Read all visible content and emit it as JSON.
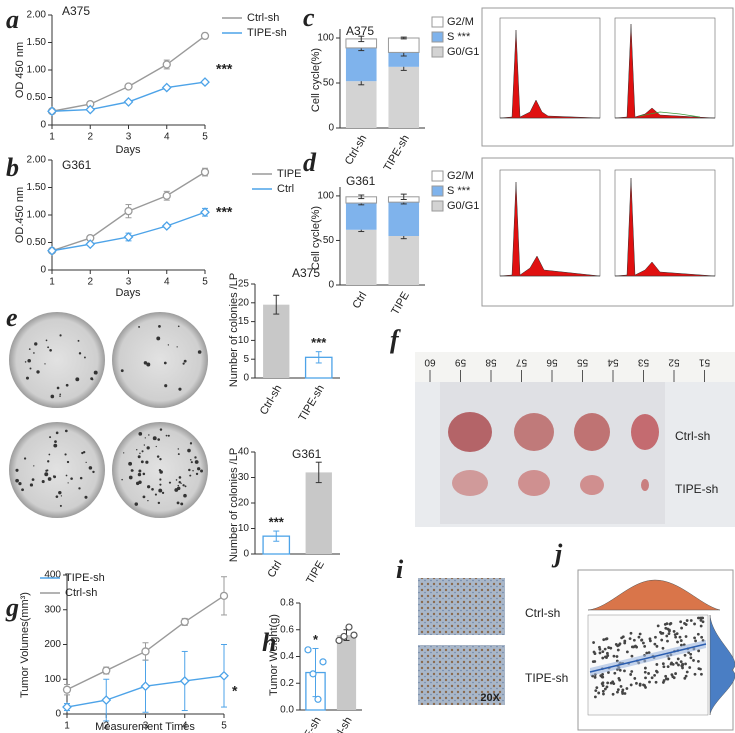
{
  "chart_data": [
    {
      "type": "line",
      "panel": "a",
      "title": "A375",
      "xlabel": "Days",
      "ylabel": "OD 450 nm",
      "x": [
        1,
        2,
        3,
        4,
        5
      ],
      "xlim": [
        1,
        5
      ],
      "xticks": [
        1,
        2,
        3,
        4,
        5
      ],
      "ylim": [
        0,
        2
      ],
      "yticks": [
        0,
        {
          "value": 0.5,
          "label": "0.50"
        },
        {
          "value": 1,
          "label": "1.00"
        },
        {
          "value": 1.5,
          "label": "1.50"
        },
        {
          "value": 2,
          "label": "2.00"
        }
      ],
      "series": [
        {
          "name": "Ctrl-sh",
          "color": "#9a9a9a",
          "marker": "circle",
          "values": [
            0.25,
            0.38,
            0.7,
            1.1,
            1.62
          ],
          "errors": [
            0.02,
            0.03,
            0.03,
            0.08,
            0.05
          ]
        },
        {
          "name": "TIPE-sh",
          "color": "#4da3e8",
          "marker": "diamond",
          "values": [
            0.25,
            0.28,
            0.42,
            0.68,
            0.78
          ],
          "errors": [
            0.02,
            0.02,
            0.02,
            0.03,
            0.03
          ]
        }
      ],
      "annotation": "***"
    },
    {
      "type": "line",
      "panel": "b",
      "title": "G361",
      "xlabel": "Days",
      "ylabel": "OD.450 nm",
      "x": [
        1,
        2,
        3,
        4,
        5
      ],
      "xlim": [
        1,
        5
      ],
      "xticks": [
        1,
        2,
        3,
        4,
        5
      ],
      "ylim": [
        0,
        2
      ],
      "yticks": [
        0,
        {
          "value": 0.5,
          "label": "0.50"
        },
        {
          "value": 1,
          "label": "1.00"
        },
        {
          "value": 1.5,
          "label": "1.50"
        },
        {
          "value": 2,
          "label": "2.00"
        }
      ],
      "series": [
        {
          "name": "TIPE",
          "color": "#9a9a9a",
          "marker": "circle",
          "values": [
            0.35,
            0.58,
            1.07,
            1.35,
            1.78
          ],
          "errors": [
            0.02,
            0.04,
            0.12,
            0.08,
            0.07
          ]
        },
        {
          "name": "Ctrl",
          "color": "#4da3e8",
          "marker": "diamond",
          "values": [
            0.35,
            0.47,
            0.6,
            0.8,
            1.05
          ],
          "errors": [
            0.02,
            0.03,
            0.07,
            0.03,
            0.07
          ]
        }
      ],
      "annotation": "***"
    },
    {
      "type": "stacked",
      "panel": "c",
      "title": "A375",
      "ylabel": "Cell cycle(%)",
      "categories": [
        "Ctrl-sh",
        "TIPE-sh"
      ],
      "ylim": [
        0,
        110
      ],
      "yticks": [
        0,
        50,
        100
      ],
      "series": [
        {
          "name": "G0/G1",
          "color": "#d3d3d3",
          "values": [
            52,
            68
          ],
          "errors": [
            4,
            4
          ]
        },
        {
          "name": "S ***",
          "color": "#7fb3ec",
          "values": [
            37,
            16
          ],
          "errors": [
            3,
            4
          ]
        },
        {
          "name": "G2/M",
          "color": "#ffffff",
          "values": [
            10,
            16
          ],
          "errors": [
            3,
            1
          ]
        }
      ]
    },
    {
      "type": "stacked",
      "panel": "d",
      "title": "G361",
      "ylabel": "Cell cycle(%)",
      "categories": [
        "Ctrl",
        "TIPE"
      ],
      "ylim": [
        0,
        110
      ],
      "yticks": [
        0,
        50,
        100
      ],
      "series": [
        {
          "name": "G0/G1",
          "color": "#d3d3d3",
          "values": [
            62,
            55
          ],
          "errors": [
            2,
            3
          ]
        },
        {
          "name": "S ***",
          "color": "#7fb3ec",
          "values": [
            30,
            38
          ],
          "errors": [
            2,
            2
          ]
        },
        {
          "name": "G2/M",
          "color": "#ffffff",
          "values": [
            7,
            6
          ],
          "errors": [
            2,
            3
          ]
        }
      ]
    },
    {
      "type": "bar",
      "panel": "e",
      "title": "A375",
      "ylabel": "Number of colonies /LP",
      "categories": [
        "Ctrl-sh",
        "TIPE-sh"
      ],
      "values": [
        19.5,
        5.5
      ],
      "errors": [
        2.5,
        1.5
      ],
      "colors": [
        "#c8c8c8",
        "#4da3e8"
      ],
      "styles": [
        "filled",
        "outline"
      ],
      "ylim": [
        0,
        25
      ],
      "yticks": [
        0,
        5,
        10,
        15,
        20,
        25
      ],
      "annotation": "***",
      "annotation_index": 1
    },
    {
      "type": "bar",
      "title": "G361",
      "ylabel": "Number of colonies /LP",
      "categories": [
        "Ctrl",
        "TIPE"
      ],
      "values": [
        7,
        32
      ],
      "errors": [
        2,
        4
      ],
      "colors": [
        "#4da3e8",
        "#c8c8c8"
      ],
      "styles": [
        "outline",
        "filled"
      ],
      "ylim": [
        0,
        40
      ],
      "yticks": [
        0,
        10,
        20,
        30,
        40
      ],
      "annotation": "***",
      "annotation_index": 0
    },
    {
      "type": "line",
      "panel": "g",
      "xlabel": "Measurement Times",
      "ylabel": "Tumor Volumes(mm³)",
      "x": [
        1,
        2,
        3,
        4,
        5
      ],
      "xlim": [
        1,
        5
      ],
      "xticks": [
        1,
        2,
        3,
        4,
        5
      ],
      "ylim": [
        0,
        400
      ],
      "yticks": [
        0,
        100,
        200,
        300,
        400
      ],
      "series": [
        {
          "name": "TIPE-sh",
          "color": "#4da3e8",
          "marker": "diamond",
          "values": [
            20,
            40,
            80,
            95,
            110
          ],
          "errors": [
            10,
            60,
            75,
            85,
            90
          ]
        },
        {
          "name": "Ctrl-sh",
          "color": "#9a9a9a",
          "marker": "circle",
          "values": [
            70,
            125,
            180,
            265,
            340
          ],
          "errors": [
            15,
            10,
            25,
            10,
            55
          ]
        }
      ],
      "annotation": "*"
    },
    {
      "type": "bar",
      "panel": "h",
      "ylabel": "Tumor Weight(g)",
      "categories": [
        "TIPE-sh",
        "Ctrl-sh"
      ],
      "values": [
        0.28,
        0.56
      ],
      "errors": [
        0.18,
        0.04
      ],
      "colors": [
        "#4da3e8",
        "#c8c8c8"
      ],
      "styles": [
        "outline",
        "filled"
      ],
      "points": [
        [
          0.45,
          0.27,
          0.08,
          0.36
        ],
        [
          0.52,
          0.55,
          0.62,
          0.56
        ]
      ],
      "ylim": [
        0,
        0.8
      ],
      "yticks": [
        {
          "value": 0,
          "label": "0.0"
        },
        0.2,
        0.4,
        0.6,
        0.8
      ],
      "annotation": "*",
      "annotation_index": 0
    }
  ],
  "images": {
    "f": {
      "panel": "f",
      "ruler": [
        60,
        59,
        58,
        57,
        56,
        55,
        54,
        53,
        52,
        51
      ],
      "labels": [
        "Ctrl-sh",
        "TIPE-sh"
      ]
    },
    "i": {
      "panel": "i",
      "labels": [
        "Ctrl-sh",
        "TIPE-sh"
      ],
      "magnification": "20X"
    },
    "j": {
      "panel": "j"
    }
  }
}
